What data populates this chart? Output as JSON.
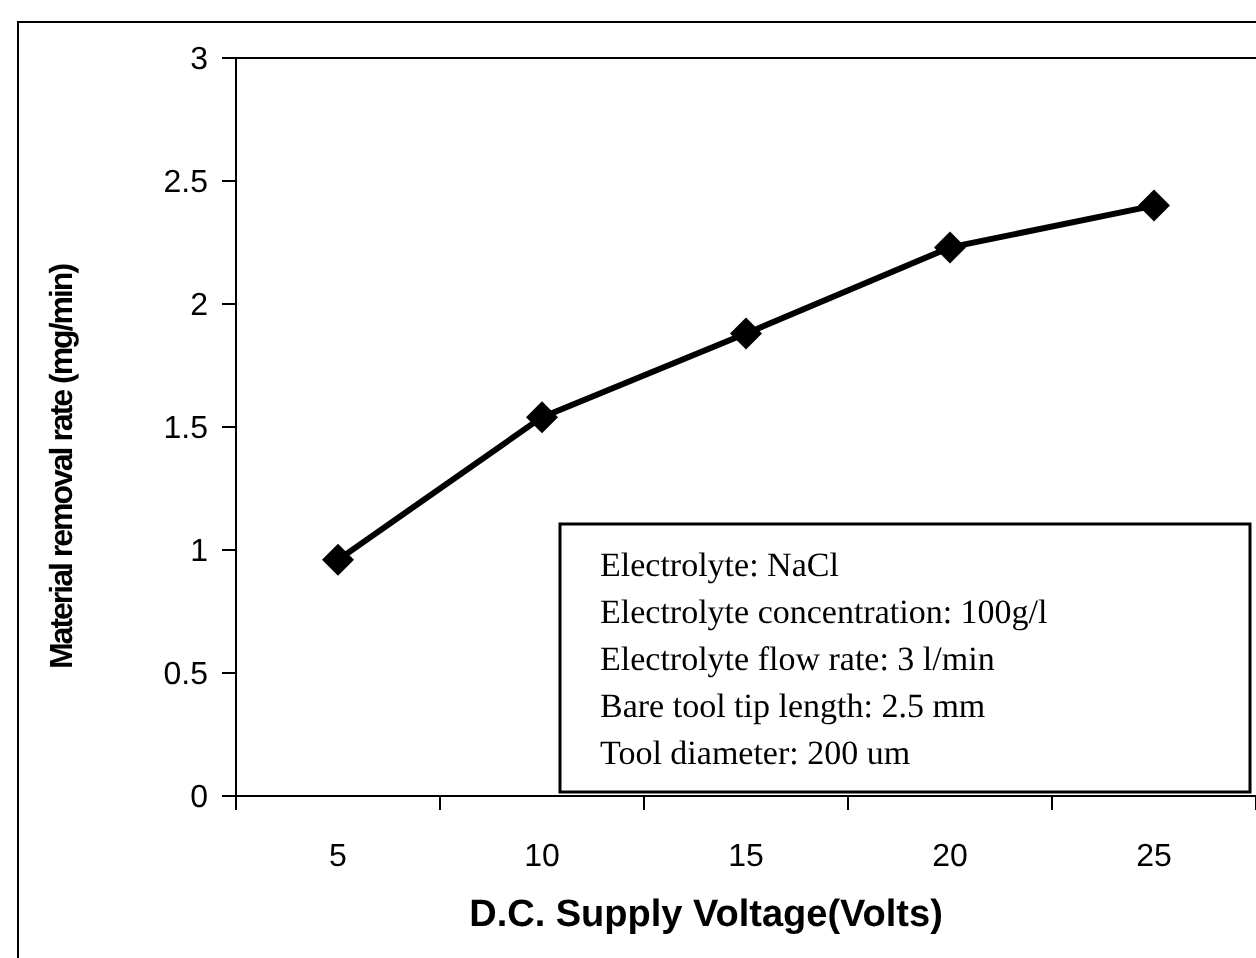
{
  "chart_data": {
    "type": "line",
    "xlabel": "D.C. Supply Voltage(Volts)",
    "ylabel": "Material removal rate (mg/min)",
    "categories": [
      "5",
      "10",
      "15",
      "20",
      "25"
    ],
    "series": [
      {
        "color": "#000000",
        "values": [
          0.96,
          1.54,
          1.88,
          2.23,
          2.4
        ]
      }
    ],
    "ylim": [
      0,
      3
    ],
    "yticks": [
      0,
      0.5,
      1,
      1.5,
      2,
      2.5,
      3
    ],
    "marker": "diamond",
    "line_style": "solid",
    "annotations": [
      "Electrolyte: NaCl",
      "Electrolyte concentration: 100g/l",
      "Electrolyte flow rate: 3 l/min",
      "Bare tool tip length: 2.5 mm",
      "Tool diameter: 200 um"
    ]
  }
}
